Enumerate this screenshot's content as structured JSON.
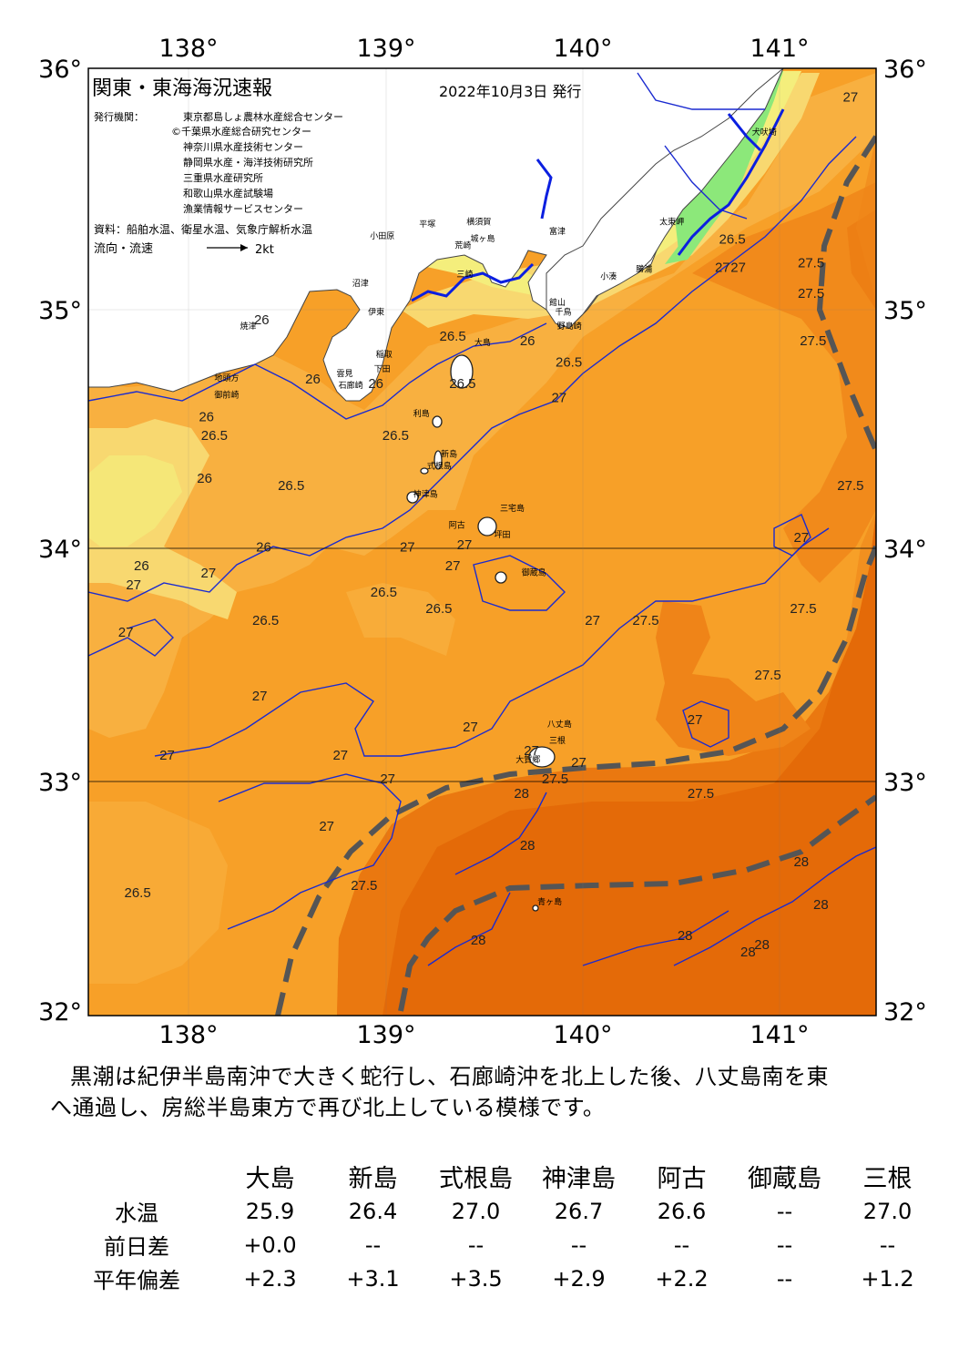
{
  "header": {
    "title": "関東・東海海況速報",
    "date": "2022年10月3日 発行",
    "issuer_label": "発行機関：",
    "issuers": [
      "東京都島しょ農林水産総合センター",
      "©千葉県水産総合研究センター",
      "神奈川県水産技術センター",
      "静岡県水産・海洋技術研究所",
      "三重県水産研究所",
      "和歌山県水産試験場",
      "漁業情報サービスセンター"
    ],
    "source": "資料：船舶水温、衛星水温、気象庁解析水温",
    "flow_label": "流向・流速",
    "flow_scale": "2kt"
  },
  "axes": {
    "lon_labels": [
      "138°",
      "139°",
      "140°",
      "141°"
    ],
    "lat_labels": [
      "36°",
      "35°",
      "34°",
      "33°",
      "32°"
    ]
  },
  "places": [
    {
      "name": "犬吠埼",
      "lon": 140.87,
      "lat": 35.72
    },
    {
      "name": "太東岬",
      "lon": 140.4,
      "lat": 35.34
    },
    {
      "name": "勝浦",
      "lon": 140.28,
      "lat": 35.14
    },
    {
      "name": "小湊",
      "lon": 140.1,
      "lat": 35.11
    },
    {
      "name": "館山",
      "lon": 139.84,
      "lat": 35.0
    },
    {
      "name": "千鳥",
      "lon": 139.87,
      "lat": 34.96
    },
    {
      "name": "野島崎",
      "lon": 139.88,
      "lat": 34.9
    },
    {
      "name": "富津",
      "lon": 139.84,
      "lat": 35.3
    },
    {
      "name": "横須賀",
      "lon": 139.42,
      "lat": 35.34
    },
    {
      "name": "城ヶ島",
      "lon": 139.44,
      "lat": 35.27
    },
    {
      "name": "平塚",
      "lon": 139.18,
      "lat": 35.33
    },
    {
      "name": "小田原",
      "lon": 138.93,
      "lat": 35.28
    },
    {
      "name": "荒崎",
      "lon": 139.36,
      "lat": 35.24
    },
    {
      "name": "三崎",
      "lon": 139.37,
      "lat": 35.12
    },
    {
      "name": "沼津",
      "lon": 138.84,
      "lat": 35.08
    },
    {
      "name": "伊東",
      "lon": 138.92,
      "lat": 34.96
    },
    {
      "name": "焼津",
      "lon": 138.27,
      "lat": 34.9
    },
    {
      "name": "稲取",
      "lon": 138.96,
      "lat": 34.78
    },
    {
      "name": "下田",
      "lon": 138.95,
      "lat": 34.72
    },
    {
      "name": "雲見",
      "lon": 138.76,
      "lat": 34.7
    },
    {
      "name": "石廊崎",
      "lon": 138.77,
      "lat": 34.65
    },
    {
      "name": "地頭方",
      "lon": 138.14,
      "lat": 34.68
    },
    {
      "name": "御前崎",
      "lon": 138.14,
      "lat": 34.61
    },
    {
      "name": "大島",
      "lon": 139.46,
      "lat": 34.83
    },
    {
      "name": "利島",
      "lon": 139.15,
      "lat": 34.53
    },
    {
      "name": "新島",
      "lon": 139.29,
      "lat": 34.36
    },
    {
      "name": "式根島",
      "lon": 139.22,
      "lat": 34.31
    },
    {
      "name": "神津島",
      "lon": 139.15,
      "lat": 34.19
    },
    {
      "name": "三宅島",
      "lon": 139.59,
      "lat": 34.13
    },
    {
      "name": "阿古",
      "lon": 139.33,
      "lat": 34.06
    },
    {
      "name": "坪田",
      "lon": 139.56,
      "lat": 34.02
    },
    {
      "name": "御蔵島",
      "lon": 139.7,
      "lat": 33.86
    },
    {
      "name": "八丈島",
      "lon": 139.83,
      "lat": 33.22
    },
    {
      "name": "三根",
      "lon": 139.84,
      "lat": 33.15
    },
    {
      "name": "大賀郷",
      "lon": 139.67,
      "lat": 33.07
    },
    {
      "name": "青ヶ島",
      "lon": 139.78,
      "lat": 32.47
    }
  ],
  "contour_labels": [
    {
      "text": "27",
      "lon": 141.37,
      "lat": 35.86
    },
    {
      "text": "26.5",
      "lon": 140.77,
      "lat": 35.26
    },
    {
      "text": "27",
      "lon": 140.72,
      "lat": 35.14
    },
    {
      "text": "27",
      "lon": 140.8,
      "lat": 35.14
    },
    {
      "text": "27.5",
      "lon": 141.17,
      "lat": 35.16
    },
    {
      "text": "27.5",
      "lon": 141.17,
      "lat": 35.03
    },
    {
      "text": "27.5",
      "lon": 141.18,
      "lat": 34.83
    },
    {
      "text": "26.5",
      "lon": 139.35,
      "lat": 34.85
    },
    {
      "text": "26",
      "lon": 139.73,
      "lat": 34.83
    },
    {
      "text": "26.5",
      "lon": 139.4,
      "lat": 34.65
    },
    {
      "text": "26.5",
      "lon": 139.94,
      "lat": 34.74
    },
    {
      "text": "27",
      "lon": 139.89,
      "lat": 34.59
    },
    {
      "text": "26",
      "lon": 138.96,
      "lat": 34.65
    },
    {
      "text": "26",
      "lon": 138.64,
      "lat": 34.67
    },
    {
      "text": "26",
      "lon": 138.38,
      "lat": 34.92
    },
    {
      "text": "26.5",
      "lon": 138.14,
      "lat": 34.43
    },
    {
      "text": "26",
      "lon": 138.1,
      "lat": 34.51
    },
    {
      "text": "26",
      "lon": 138.09,
      "lat": 34.25
    },
    {
      "text": "26.5",
      "lon": 138.53,
      "lat": 34.22
    },
    {
      "text": "26.5",
      "lon": 139.06,
      "lat": 34.43
    },
    {
      "text": "27.5",
      "lon": 141.37,
      "lat": 34.22
    },
    {
      "text": "27",
      "lon": 141.12,
      "lat": 34.0
    },
    {
      "text": "26",
      "lon": 138.39,
      "lat": 33.96
    },
    {
      "text": "27",
      "lon": 138.11,
      "lat": 33.85
    },
    {
      "text": "26",
      "lon": 137.77,
      "lat": 33.88
    },
    {
      "text": "27",
      "lon": 137.73,
      "lat": 33.8
    },
    {
      "text": "27",
      "lon": 139.12,
      "lat": 33.96
    },
    {
      "text": "27",
      "lon": 139.41,
      "lat": 33.97
    },
    {
      "text": "27",
      "lon": 139.35,
      "lat": 33.88
    },
    {
      "text": "26.5",
      "lon": 139.0,
      "lat": 33.77
    },
    {
      "text": "26.5",
      "lon": 139.28,
      "lat": 33.7
    },
    {
      "text": "26.5",
      "lon": 138.4,
      "lat": 33.65
    },
    {
      "text": "27",
      "lon": 137.69,
      "lat": 33.6
    },
    {
      "text": "27.5",
      "lon": 140.33,
      "lat": 33.65
    },
    {
      "text": "27",
      "lon": 140.06,
      "lat": 33.65
    },
    {
      "text": "27.5",
      "lon": 141.13,
      "lat": 33.7
    },
    {
      "text": "27.5",
      "lon": 140.95,
      "lat": 33.42
    },
    {
      "text": "27",
      "lon": 138.37,
      "lat": 33.33
    },
    {
      "text": "27",
      "lon": 140.58,
      "lat": 33.23
    },
    {
      "text": "27",
      "lon": 139.44,
      "lat": 33.2
    },
    {
      "text": "27",
      "lon": 137.9,
      "lat": 33.08
    },
    {
      "text": "27",
      "lon": 138.78,
      "lat": 33.08
    },
    {
      "text": "27",
      "lon": 139.02,
      "lat": 32.98
    },
    {
      "text": "27",
      "lon": 139.75,
      "lat": 33.1
    },
    {
      "text": "27.5",
      "lon": 139.87,
      "lat": 32.98
    },
    {
      "text": "27",
      "lon": 139.99,
      "lat": 33.05
    },
    {
      "text": "27.5",
      "lon": 140.61,
      "lat": 32.92
    },
    {
      "text": "28",
      "lon": 139.7,
      "lat": 32.92
    },
    {
      "text": "28",
      "lon": 139.73,
      "lat": 32.7
    },
    {
      "text": "27",
      "lon": 138.71,
      "lat": 32.78
    },
    {
      "text": "27.5",
      "lon": 138.9,
      "lat": 32.53
    },
    {
      "text": "26.5",
      "lon": 137.75,
      "lat": 32.5
    },
    {
      "text": "28",
      "lon": 141.12,
      "lat": 32.63
    },
    {
      "text": "28",
      "lon": 141.22,
      "lat": 32.45
    },
    {
      "text": "28",
      "lon": 139.48,
      "lat": 32.3
    },
    {
      "text": "28",
      "lon": 140.53,
      "lat": 32.32
    },
    {
      "text": "28",
      "lon": 140.92,
      "lat": 32.28
    },
    {
      "text": "28",
      "lon": 140.85,
      "lat": 32.25
    }
  ],
  "summary_lines": [
    "黒潮は紀伊半島南沖で大きく蛇行し、石廊崎沖を北上した後、八丈島南を東",
    "へ通過し、房総半島東方で再び北上している模様です。"
  ],
  "stations": {
    "columns": [
      "大島",
      "新島",
      "式根島",
      "神津島",
      "阿古",
      "御蔵島",
      "三根"
    ],
    "rows": [
      {
        "label": "水温",
        "values": [
          "25.9",
          "26.4",
          "27.0",
          "26.7",
          "26.6",
          "--",
          "27.0"
        ]
      },
      {
        "label": "前日差",
        "values": [
          "+0.0",
          "--",
          "--",
          "--",
          "--",
          "--",
          "--"
        ]
      },
      {
        "label": "平年偏差",
        "values": [
          "+2.3",
          "+3.1",
          "+3.5",
          "+2.9",
          "+2.2",
          "--",
          "+1.2"
        ]
      }
    ]
  },
  "colors": {
    "land": "#ffffff",
    "t25": "#8ce87a",
    "t25_5": "#f4ee7c",
    "t26": "#f8d870",
    "t26_5": "#f8b040",
    "t27": "#f7a028",
    "t27_5": "#ef8418",
    "t28": "#e46a08",
    "contour": "#1a2ad0",
    "kuroshio": "#555555"
  }
}
